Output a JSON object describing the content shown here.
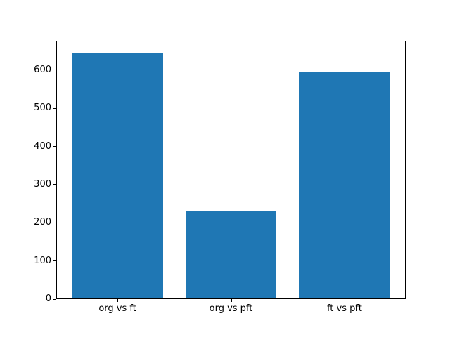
{
  "chart_data": {
    "type": "bar",
    "title": "",
    "xlabel": "",
    "ylabel": "",
    "categories": [
      "org vs ft",
      "org vs pft",
      "ft vs pft"
    ],
    "values": [
      646,
      232,
      596
    ],
    "yticks": [
      "0",
      "100",
      "200",
      "300",
      "400",
      "500",
      "600"
    ],
    "ytick_values": [
      0,
      100,
      200,
      300,
      400,
      500,
      600
    ],
    "ylim": [
      0,
      677
    ],
    "bar_color": "#1f77b4",
    "bar_relative_width": 0.8,
    "axes_background": "#ffffff",
    "figure_background": "#ffffff",
    "spine_color": "#000000",
    "tick_label_color": "#000000",
    "grid": false,
    "legend": null
  }
}
